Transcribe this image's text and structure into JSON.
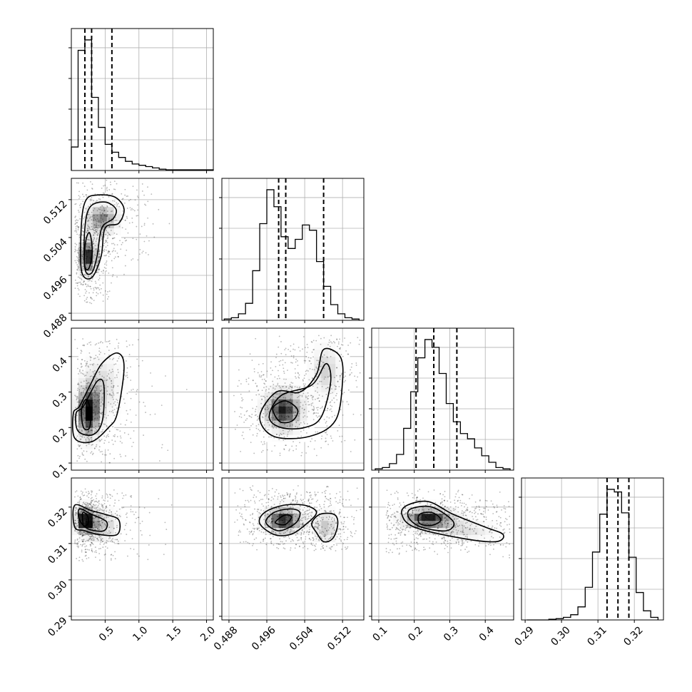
{
  "chart_data": {
    "type": "corner",
    "grid": true,
    "parameters": [
      {
        "range": [
          0.0,
          2.1
        ],
        "ticks": [
          0.5,
          1.0,
          1.5,
          2.0
        ],
        "tick_labels": [
          "0.5",
          "1.0",
          "1.5",
          "2.0"
        ]
      },
      {
        "range": [
          0.4865,
          0.5165
        ],
        "ticks": [
          0.488,
          0.496,
          0.504,
          0.512
        ],
        "tick_labels": [
          "0.488",
          "0.496",
          "0.504",
          "0.512"
        ]
      },
      {
        "range": [
          0.08,
          0.48
        ],
        "ticks": [
          0.1,
          0.2,
          0.3,
          0.4
        ],
        "tick_labels": [
          "0.1",
          "0.2",
          "0.3",
          "0.4"
        ]
      },
      {
        "range": [
          0.289,
          0.328
        ],
        "ticks": [
          0.29,
          0.3,
          0.31,
          0.32
        ],
        "tick_labels": [
          "0.29",
          "0.30",
          "0.31",
          "0.32"
        ]
      }
    ],
    "histograms": [
      {
        "bins": [
          0.0,
          0.1,
          0.2,
          0.3,
          0.4,
          0.5,
          0.6,
          0.7,
          0.8,
          0.9,
          1.0,
          1.1,
          1.2,
          1.3,
          1.4,
          2.1
        ],
        "counts": [
          0.18,
          0.92,
          1.0,
          0.56,
          0.33,
          0.2,
          0.14,
          0.1,
          0.07,
          0.05,
          0.04,
          0.03,
          0.02,
          0.01,
          0.005
        ],
        "quantiles": [
          0.2,
          0.3,
          0.6
        ]
      },
      {
        "bins": [
          0.487,
          0.4885,
          0.49,
          0.4915,
          0.493,
          0.4945,
          0.496,
          0.4975,
          0.499,
          0.5005,
          0.502,
          0.5035,
          0.505,
          0.5065,
          0.508,
          0.5095,
          0.511,
          0.5125,
          0.514,
          0.5155
        ],
        "counts": [
          0.01,
          0.02,
          0.05,
          0.13,
          0.38,
          0.74,
          1.0,
          0.87,
          0.64,
          0.55,
          0.62,
          0.73,
          0.69,
          0.45,
          0.26,
          0.12,
          0.05,
          0.02,
          0.01
        ],
        "quantiles": [
          0.4985,
          0.5,
          0.508
        ]
      },
      {
        "bins": [
          0.09,
          0.11,
          0.13,
          0.15,
          0.17,
          0.19,
          0.21,
          0.23,
          0.25,
          0.27,
          0.29,
          0.31,
          0.33,
          0.35,
          0.37,
          0.39,
          0.41,
          0.43,
          0.45,
          0.47
        ],
        "counts": [
          0.01,
          0.02,
          0.05,
          0.12,
          0.32,
          0.6,
          0.86,
          1.0,
          0.94,
          0.74,
          0.51,
          0.37,
          0.28,
          0.24,
          0.17,
          0.11,
          0.06,
          0.02,
          0.01
        ],
        "quantiles": [
          0.205,
          0.255,
          0.32
        ]
      },
      {
        "bins": [
          0.2905,
          0.2925,
          0.2945,
          0.2965,
          0.2985,
          0.3005,
          0.3025,
          0.3045,
          0.3065,
          0.3085,
          0.3105,
          0.3125,
          0.3145,
          0.3165,
          0.3185,
          0.3205,
          0.3225,
          0.3245,
          0.3265
        ],
        "counts": [
          0.0,
          0.0,
          0.0,
          0.005,
          0.01,
          0.02,
          0.04,
          0.1,
          0.25,
          0.52,
          0.81,
          1.0,
          0.98,
          0.82,
          0.48,
          0.21,
          0.07,
          0.02
        ],
        "quantiles": [
          0.3125,
          0.3155,
          0.3185
        ]
      }
    ],
    "pairs": [
      {
        "x_param": 0,
        "y_param": 1,
        "peaks": [
          {
            "center": [
              0.25,
              0.5
            ],
            "sd": [
              0.1,
              0.0025
            ],
            "weight": 1.0
          },
          {
            "center": [
              0.45,
              0.508
            ],
            "sd": [
              0.17,
              0.0022
            ],
            "weight": 0.75
          }
        ],
        "contours": [
          [
            [
              0.15,
              0.497
            ],
            [
              0.3,
              0.4955
            ],
            [
              0.44,
              0.5
            ],
            [
              0.5,
              0.506
            ],
            [
              0.7,
              0.507
            ],
            [
              0.78,
              0.51
            ],
            [
              0.65,
              0.5125
            ],
            [
              0.4,
              0.513
            ],
            [
              0.22,
              0.512
            ],
            [
              0.15,
              0.507
            ]
          ],
          [
            [
              0.2,
              0.4975
            ],
            [
              0.3,
              0.4965
            ],
            [
              0.38,
              0.5
            ],
            [
              0.45,
              0.506
            ],
            [
              0.62,
              0.508
            ],
            [
              0.66,
              0.51
            ],
            [
              0.5,
              0.5115
            ],
            [
              0.28,
              0.5105
            ],
            [
              0.2,
              0.506
            ]
          ],
          [
            [
              0.2,
              0.498
            ],
            [
              0.26,
              0.4975
            ],
            [
              0.31,
              0.501
            ],
            [
              0.27,
              0.505
            ],
            [
              0.21,
              0.503
            ]
          ]
        ],
        "scatter_extent": [
          [
            0.05,
            1.5
          ],
          [
            0.49,
            0.517
          ]
        ]
      },
      {
        "x_param": 0,
        "y_param": 2,
        "peaks": [
          {
            "center": [
              0.25,
              0.24
            ],
            "sd": [
              0.12,
              0.05
            ],
            "weight": 1.0
          },
          {
            "center": [
              0.45,
              0.32
            ],
            "sd": [
              0.2,
              0.06
            ],
            "weight": 0.4
          }
        ],
        "contours": [
          [
            [
              0.05,
              0.17
            ],
            [
              0.3,
              0.16
            ],
            [
              0.55,
              0.2
            ],
            [
              0.68,
              0.24
            ],
            [
              0.78,
              0.37
            ],
            [
              0.68,
              0.41
            ],
            [
              0.45,
              0.38
            ],
            [
              0.28,
              0.32
            ],
            [
              0.12,
              0.26
            ],
            [
              0.03,
              0.24
            ]
          ],
          [
            [
              0.1,
              0.19
            ],
            [
              0.32,
              0.18
            ],
            [
              0.46,
              0.22
            ],
            [
              0.48,
              0.32
            ],
            [
              0.38,
              0.33
            ],
            [
              0.18,
              0.26
            ],
            [
              0.07,
              0.24
            ]
          ],
          [
            [
              0.18,
              0.2
            ],
            [
              0.27,
              0.2
            ],
            [
              0.28,
              0.25
            ],
            [
              0.22,
              0.28
            ],
            [
              0.15,
              0.25
            ]
          ]
        ],
        "scatter_extent": [
          [
            0.05,
            1.8
          ],
          [
            0.1,
            0.45
          ]
        ]
      },
      {
        "x_param": 1,
        "y_param": 2,
        "peaks": [
          {
            "center": [
              0.4995,
              0.25
            ],
            "sd": [
              0.0028,
              0.04
            ],
            "weight": 1.0
          },
          {
            "center": [
              0.5085,
              0.36
            ],
            "sd": [
              0.0022,
              0.05
            ],
            "weight": 0.45
          }
        ],
        "contours": [
          [
            [
              0.4945,
              0.23
            ],
            [
              0.4975,
              0.175
            ],
            [
              0.505,
              0.175
            ],
            [
              0.5105,
              0.22
            ],
            [
              0.512,
              0.33
            ],
            [
              0.5115,
              0.4
            ],
            [
              0.508,
              0.42
            ],
            [
              0.5065,
              0.35
            ],
            [
              0.503,
              0.3
            ],
            [
              0.498,
              0.3
            ]
          ],
          [
            [
              0.4965,
              0.23
            ],
            [
              0.499,
              0.2
            ],
            [
              0.504,
              0.2
            ],
            [
              0.5075,
              0.23
            ],
            [
              0.5095,
              0.33
            ],
            [
              0.5085,
              0.38
            ],
            [
              0.5055,
              0.32
            ],
            [
              0.499,
              0.29
            ]
          ],
          [
            [
              0.4975,
              0.24
            ],
            [
              0.499,
              0.215
            ],
            [
              0.5015,
              0.22
            ],
            [
              0.5025,
              0.25
            ],
            [
              0.5,
              0.275
            ],
            [
              0.4975,
              0.26
            ]
          ]
        ],
        "scatter_extent": [
          [
            0.489,
            0.516
          ],
          [
            0.12,
            0.46
          ]
        ]
      },
      {
        "x_param": 0,
        "y_param": 3,
        "peaks": [
          {
            "center": [
              0.2,
              0.3165
            ],
            "sd": [
              0.1,
              0.0025
            ],
            "weight": 1.0
          },
          {
            "center": [
              0.45,
              0.315
            ],
            "sd": [
              0.18,
              0.003
            ],
            "weight": 0.5
          }
        ],
        "contours": [
          [
            [
              0.05,
              0.3205
            ],
            [
              0.3,
              0.319
            ],
            [
              0.5,
              0.318
            ],
            [
              0.7,
              0.3165
            ],
            [
              0.68,
              0.3125
            ],
            [
              0.4,
              0.3125
            ],
            [
              0.2,
              0.3135
            ],
            [
              0.05,
              0.3145
            ]
          ],
          [
            [
              0.12,
              0.3195
            ],
            [
              0.3,
              0.318
            ],
            [
              0.52,
              0.316
            ],
            [
              0.48,
              0.3135
            ],
            [
              0.25,
              0.314
            ],
            [
              0.12,
              0.3165
            ]
          ],
          [
            [
              0.17,
              0.3185
            ],
            [
              0.24,
              0.3175
            ],
            [
              0.25,
              0.3155
            ],
            [
              0.18,
              0.315
            ]
          ]
        ],
        "scatter_extent": [
          [
            0.05,
            1.5
          ],
          [
            0.305,
            0.325
          ]
        ]
      },
      {
        "x_param": 1,
        "y_param": 3,
        "peaks": [
          {
            "center": [
              0.4995,
              0.3165
            ],
            "sd": [
              0.0028,
              0.0025
            ],
            "weight": 1.0
          },
          {
            "center": [
              0.5085,
              0.3145
            ],
            "sd": [
              0.0018,
              0.003
            ],
            "weight": 0.5
          }
        ],
        "contours": [
          [
            [
              0.4945,
              0.3155
            ],
            [
              0.4955,
              0.3185
            ],
            [
              0.4995,
              0.3205
            ],
            [
              0.504,
              0.3205
            ],
            [
              0.5065,
              0.3185
            ],
            [
              0.504,
              0.315
            ],
            [
              0.501,
              0.3125
            ],
            [
              0.4975,
              0.3125
            ]
          ],
          [
            [
              0.4958,
              0.3158
            ],
            [
              0.4975,
              0.3185
            ],
            [
              0.501,
              0.3195
            ],
            [
              0.503,
              0.3185
            ],
            [
              0.502,
              0.3155
            ],
            [
              0.4985,
              0.3135
            ]
          ],
          [
            [
              0.4978,
              0.3158
            ],
            [
              0.4998,
              0.3178
            ],
            [
              0.5012,
              0.3172
            ],
            [
              0.4998,
              0.3152
            ]
          ],
          [
            [
              0.5065,
              0.313
            ],
            [
              0.5055,
              0.3155
            ],
            [
              0.5072,
              0.318
            ],
            [
              0.5102,
              0.318
            ],
            [
              0.511,
              0.3155
            ],
            [
              0.51,
              0.3115
            ],
            [
              0.508,
              0.3105
            ]
          ]
        ],
        "scatter_extent": [
          [
            0.489,
            0.516
          ],
          [
            0.308,
            0.326
          ]
        ]
      },
      {
        "x_param": 2,
        "y_param": 3,
        "peaks": [
          {
            "center": [
              0.24,
              0.317
            ],
            "sd": [
              0.05,
              0.002
            ],
            "weight": 1.0
          },
          {
            "center": [
              0.35,
              0.3135
            ],
            "sd": [
              0.06,
              0.002
            ],
            "weight": 0.35
          }
        ],
        "contours": [
          [
            [
              0.18,
              0.3205
            ],
            [
              0.24,
              0.3215
            ],
            [
              0.31,
              0.318
            ],
            [
              0.4,
              0.3145
            ],
            [
              0.45,
              0.3125
            ],
            [
              0.43,
              0.3105
            ],
            [
              0.33,
              0.3115
            ],
            [
              0.2,
              0.3145
            ],
            [
              0.165,
              0.318
            ]
          ],
          [
            [
              0.19,
              0.3195
            ],
            [
              0.25,
              0.32
            ],
            [
              0.31,
              0.316
            ],
            [
              0.29,
              0.3135
            ],
            [
              0.22,
              0.3145
            ],
            [
              0.185,
              0.317
            ]
          ],
          [
            [
              0.215,
              0.318
            ],
            [
              0.25,
              0.3185
            ],
            [
              0.275,
              0.3165
            ],
            [
              0.25,
              0.315
            ],
            [
              0.215,
              0.3155
            ]
          ]
        ],
        "scatter_extent": [
          [
            0.12,
            0.47
          ],
          [
            0.306,
            0.325
          ]
        ]
      }
    ]
  }
}
